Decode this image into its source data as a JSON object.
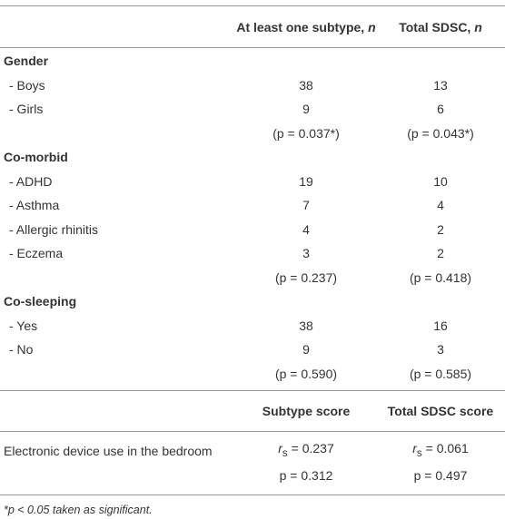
{
  "header": {
    "col1": {
      "text": "At least one subtype,",
      "var": "n"
    },
    "col2": {
      "text": "Total SDSC,",
      "var": "n"
    }
  },
  "sections": [
    {
      "title": "Gender",
      "rows": [
        {
          "label": "- Boys",
          "values": [
            38,
            13
          ]
        },
        {
          "label": "- Girls",
          "values": [
            9,
            6
          ]
        }
      ],
      "test": [
        "(p = 0.037*)",
        "(p = 0.043*)"
      ]
    },
    {
      "title": "Co-morbid",
      "rows": [
        {
          "label": "- ADHD",
          "values": [
            19,
            10
          ]
        },
        {
          "label": "- Asthma",
          "values": [
            7,
            4
          ]
        },
        {
          "label": "- Allergic rhinitis",
          "values": [
            4,
            2
          ]
        },
        {
          "label": "- Eczema",
          "values": [
            3,
            2
          ]
        }
      ],
      "test": [
        "(p = 0.237)",
        "(p = 0.418)"
      ]
    },
    {
      "title": "Co-sleeping",
      "rows": [
        {
          "label": "- Yes",
          "values": [
            38,
            16
          ]
        },
        {
          "label": "- No",
          "values": [
            9,
            3
          ]
        }
      ],
      "test": [
        "(p = 0.590)",
        "(p = 0.585)"
      ]
    }
  ],
  "subheader": [
    "Subtype score",
    "Total SDSC score"
  ],
  "correlation": {
    "label": "Electronic device use in the bedroom",
    "r": [
      {
        "symbol": "r",
        "subscript": "s",
        "value": "= 0.237"
      },
      {
        "symbol": "r",
        "subscript": "s",
        "value": "= 0.061"
      }
    ],
    "p": [
      "p = 0.312",
      "p = 0.497"
    ]
  },
  "footnote": "*p < 0.05 taken as significant."
}
